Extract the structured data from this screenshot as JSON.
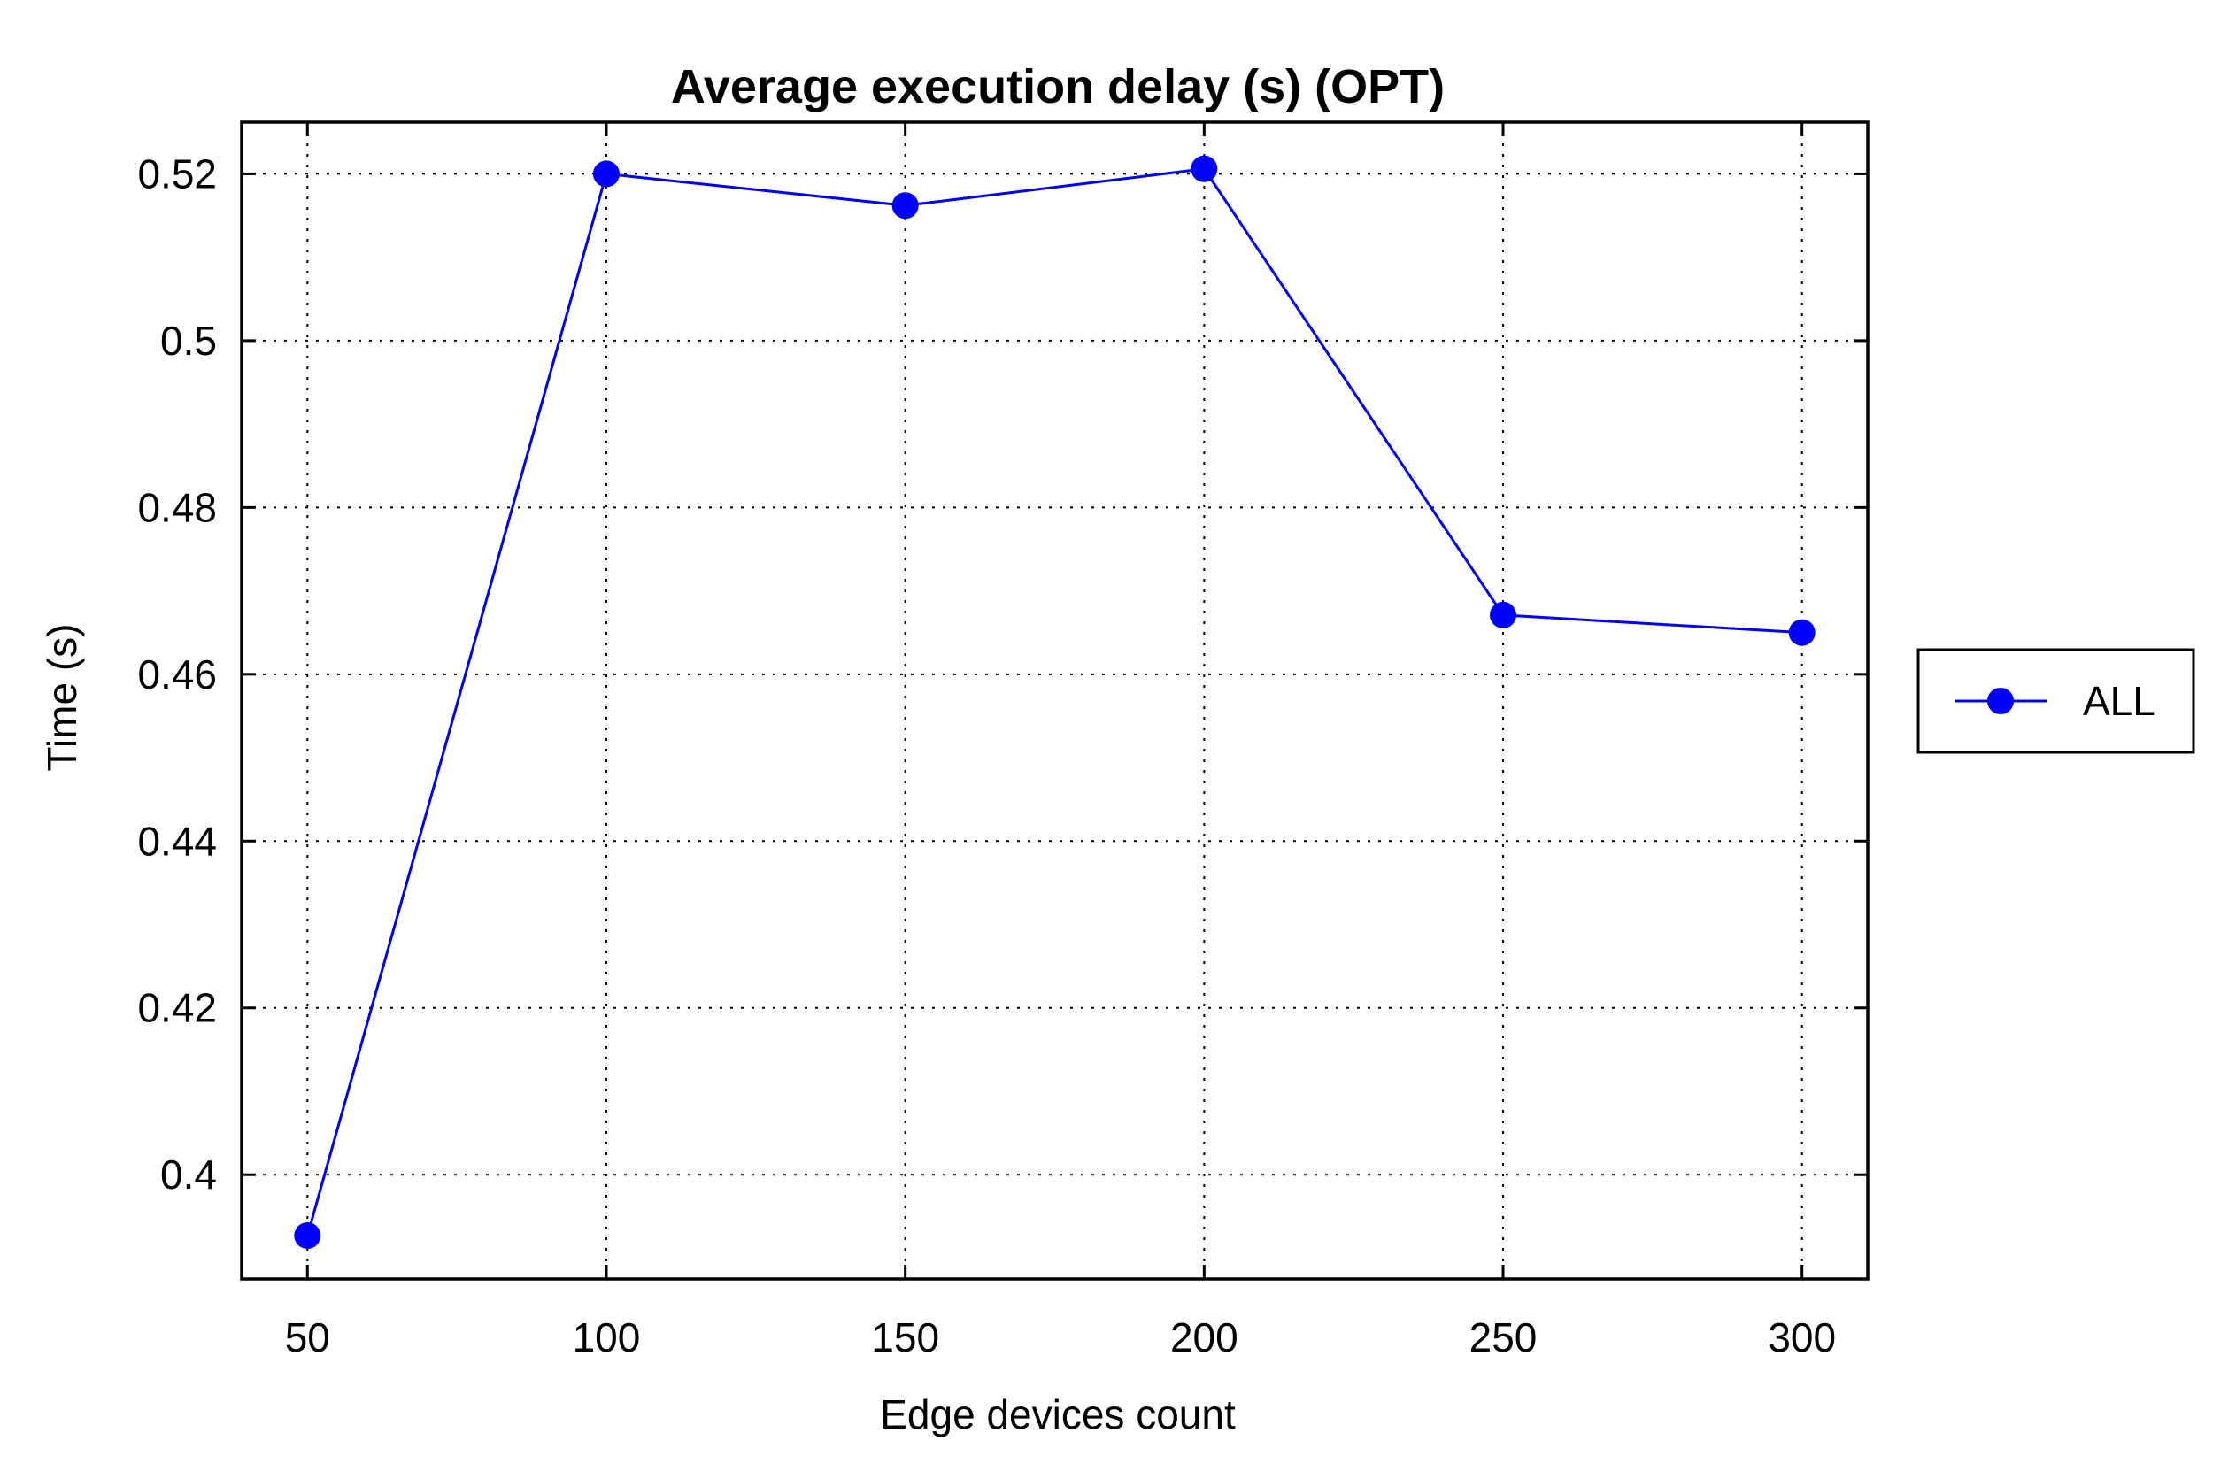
{
  "chart_data": {
    "type": "line",
    "title": "Average execution delay (s) (OPT)",
    "xlabel": "Edge devices count",
    "ylabel": "Time (s)",
    "x": [
      50,
      100,
      150,
      200,
      250,
      300
    ],
    "x_tick_labels": [
      "50",
      "100",
      "150",
      "200",
      "250",
      "300"
    ],
    "y_ticks": [
      0.4,
      0.42,
      0.44,
      0.46,
      0.48,
      0.5,
      0.52
    ],
    "y_tick_labels": [
      "0.4",
      "0.42",
      "0.44",
      "0.46",
      "0.48",
      "0.5",
      "0.52"
    ],
    "xlim": [
      39,
      311
    ],
    "ylim": [
      0.3875,
      0.5262
    ],
    "grid": true,
    "legend_position": "outside-right",
    "series": [
      {
        "name": "ALL",
        "color": "#0000ff",
        "marker": "circle",
        "values": [
          0.3927,
          0.52,
          0.5162,
          0.5206,
          0.4671,
          0.465
        ]
      }
    ]
  }
}
